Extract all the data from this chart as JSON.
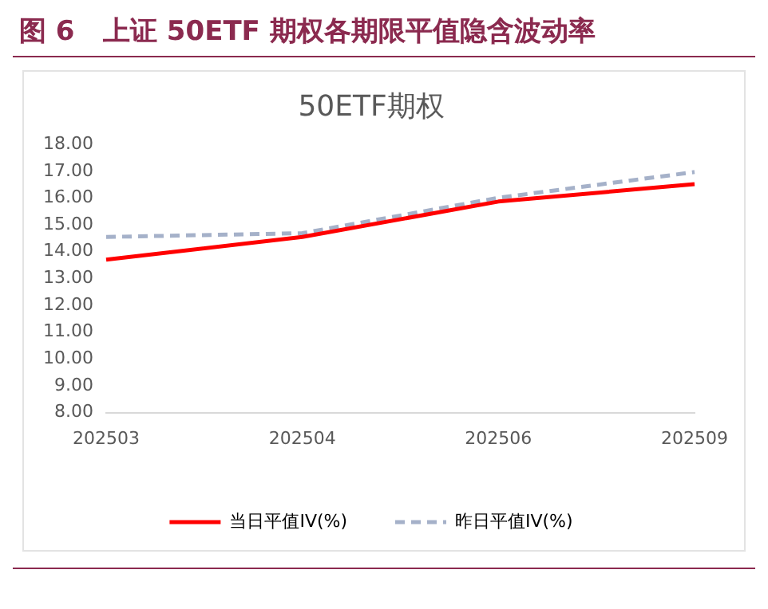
{
  "chart_data": {
    "type": "line",
    "title": "图 6   上证 50ETF 期权各期限平值隐含波动率",
    "subtitle": "50ETF期权",
    "categories": [
      "202503",
      "202504",
      "202506",
      "202509"
    ],
    "series": [
      {
        "name": "当日平值IV(%)",
        "color": "#ff0000",
        "values": [
          13.7,
          14.55,
          15.87,
          16.52
        ],
        "line_style": "solid"
      },
      {
        "name": "昨日平值IV(%)",
        "color": "#a5b1c9",
        "values": [
          14.55,
          14.69,
          16.01,
          16.97
        ],
        "line_style": "dashed"
      }
    ],
    "ylim": [
      8,
      18
    ],
    "yticks": [
      {
        "value": 8,
        "label": "8.00"
      },
      {
        "value": 9,
        "label": "9.00"
      },
      {
        "value": 10,
        "label": "10.00"
      },
      {
        "value": 11,
        "label": "11.00"
      },
      {
        "value": 12,
        "label": "12.00"
      },
      {
        "value": 13,
        "label": "13.00"
      },
      {
        "value": 14,
        "label": "14.00"
      },
      {
        "value": 15,
        "label": "15.00"
      },
      {
        "value": 16,
        "label": "16.00"
      },
      {
        "value": 17,
        "label": "17.00"
      },
      {
        "value": 18,
        "label": "18.00"
      }
    ],
    "grid": false,
    "legend": "bottom",
    "marker": "none"
  }
}
